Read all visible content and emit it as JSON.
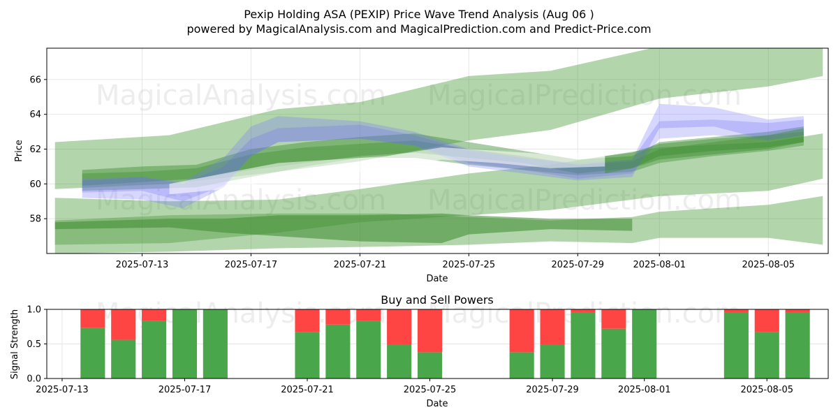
{
  "chart_data": [
    {
      "type": "area",
      "title": "Pexip Holding ASA (PEXIP) Price Wave Trend Analysis (Aug 06 )",
      "subtitle": "powered by MagicalAnalysis.com and MagicalPrediction.com and Predict-Price.com",
      "xlabel": "Date",
      "ylabel": "Price",
      "ylim": [
        56.0,
        67.8
      ],
      "yticks": [
        58,
        60,
        62,
        64,
        66
      ],
      "xticks": [
        "2025-07-13",
        "2025-07-17",
        "2025-07-21",
        "2025-07-25",
        "2025-07-29",
        "2025-08-01",
        "2025-08-05"
      ],
      "xtick_days": [
        13,
        17,
        21,
        25,
        29,
        32,
        36
      ],
      "xlim_days": [
        9.5,
        38.2
      ],
      "watermarks": [
        "MagicalAnalysis.com",
        "MagicalPrediction.com"
      ],
      "bands": [
        {
          "name": "upper-wide",
          "color": "#4a9c3a",
          "opacity": 0.42,
          "points": [
            [
              9.8,
              62.4,
              59.7
            ],
            [
              14,
              62.8,
              60.0
            ],
            [
              18,
              64.3,
              60.7
            ],
            [
              21,
              64.7,
              61.3
            ],
            [
              25,
              66.2,
              62.5
            ],
            [
              28,
              66.5,
              63.1
            ],
            [
              32,
              67.9,
              64.9
            ],
            [
              36,
              67.8,
              65.6
            ],
            [
              38,
              68.3,
              66.2
            ]
          ]
        },
        {
          "name": "lower-wide",
          "color": "#4a9c3a",
          "opacity": 0.42,
          "points": [
            [
              9.8,
              59.2,
              56.5
            ],
            [
              14,
              59.0,
              56.6
            ],
            [
              18,
              59.1,
              57.2
            ],
            [
              21,
              59.7,
              57.8
            ],
            [
              25,
              60.6,
              58.2
            ],
            [
              28,
              61.1,
              58.5
            ],
            [
              32,
              62.1,
              59.3
            ],
            [
              36,
              62.4,
              59.6
            ],
            [
              38,
              62.9,
              60.3
            ]
          ]
        },
        {
          "name": "bottom-band",
          "color": "#4a9c3a",
          "opacity": 0.42,
          "points": [
            [
              9.8,
              57.9,
              56.0
            ],
            [
              14,
              58.2,
              56.1
            ],
            [
              18,
              58.3,
              56.3
            ],
            [
              22,
              58.3,
              56.4
            ],
            [
              25,
              58.1,
              56.5
            ],
            [
              28,
              57.9,
              56.7
            ],
            [
              31,
              58.1,
              56.6
            ],
            [
              32,
              58.4,
              56.9
            ],
            [
              36,
              58.8,
              56.9
            ],
            [
              38,
              59.3,
              56.5
            ]
          ]
        },
        {
          "name": "dark-lower",
          "color": "#3a8a2e",
          "opacity": 0.55,
          "points": [
            [
              9.8,
              57.8,
              57.4
            ],
            [
              14,
              58.0,
              57.5
            ],
            [
              16,
              58.0,
              57.2
            ],
            [
              18,
              58.2,
              57.0
            ],
            [
              21,
              58.2,
              56.7
            ],
            [
              24,
              58.3,
              56.6
            ],
            [
              25,
              58.2,
              57.1
            ],
            [
              28,
              58.0,
              57.4
            ],
            [
              31,
              58.0,
              57.3
            ]
          ]
        },
        {
          "name": "green-mid-1",
          "color": "#3f8f33",
          "opacity": 0.45,
          "points": [
            [
              10.8,
              60.8,
              59.9
            ],
            [
              13,
              61.0,
              60.1
            ],
            [
              15,
              61.1,
              60.3
            ],
            [
              17,
              62.0,
              60.8
            ],
            [
              19,
              62.4,
              61.2
            ],
            [
              21,
              62.7,
              61.6
            ],
            [
              23,
              62.9,
              61.8
            ],
            [
              25,
              62.4,
              61.5
            ],
            [
              27,
              61.9,
              61.2
            ],
            [
              29,
              61.4,
              60.6
            ],
            [
              31,
              61.6,
              60.9
            ],
            [
              32,
              62.4,
              61.4
            ],
            [
              34,
              62.7,
              61.7
            ],
            [
              36,
              63.0,
              62.0
            ],
            [
              37.3,
              63.3,
              62.4
            ]
          ]
        },
        {
          "name": "green-mid-2",
          "color": "#3f8f33",
          "opacity": 0.4,
          "points": [
            [
              10.8,
              60.6,
              59.6
            ],
            [
              13,
              60.7,
              59.7
            ],
            [
              15,
              60.9,
              59.8
            ],
            [
              17,
              61.7,
              60.4
            ],
            [
              19,
              62.1,
              61.0
            ],
            [
              21,
              62.3,
              61.5
            ],
            [
              23,
              62.5,
              61.5
            ],
            [
              25,
              62.0,
              61.1
            ],
            [
              27,
              61.6,
              60.8
            ],
            [
              29,
              61.1,
              60.5
            ],
            [
              31,
              61.3,
              60.7
            ],
            [
              32,
              62.0,
              61.2
            ],
            [
              34,
              62.4,
              61.6
            ],
            [
              36,
              62.8,
              61.9
            ],
            [
              37.3,
              63.0,
              62.2
            ]
          ]
        },
        {
          "name": "blue-1",
          "color": "#7777ff",
          "opacity": 0.3,
          "points": [
            [
              10.8,
              60.3,
              59.2
            ],
            [
              13,
              60.4,
              59.1
            ],
            [
              14.5,
              60.1,
              58.6
            ],
            [
              16,
              61.5,
              59.8
            ],
            [
              17,
              63.3,
              61.6
            ],
            [
              18,
              63.9,
              62.4
            ],
            [
              21,
              63.6,
              62.6
            ],
            [
              23,
              63.0,
              62.2
            ],
            [
              25,
              62.0,
              61.0
            ],
            [
              27,
              61.5,
              60.6
            ],
            [
              29,
              61.2,
              60.2
            ],
            [
              31,
              61.4,
              60.4
            ],
            [
              32,
              64.6,
              63.2
            ],
            [
              34,
              64.4,
              63.3
            ],
            [
              36,
              63.7,
              62.5
            ],
            [
              37.3,
              63.9,
              62.8
            ]
          ]
        },
        {
          "name": "blue-2",
          "color": "#6666ee",
          "opacity": 0.25,
          "points": [
            [
              10.8,
              60.2,
              59.5
            ],
            [
              13,
              60.4,
              59.6
            ],
            [
              14.5,
              60.0,
              59.0
            ],
            [
              16,
              61.0,
              59.9
            ],
            [
              17,
              62.6,
              61.6
            ],
            [
              18,
              63.2,
              62.4
            ],
            [
              21,
              63.4,
              62.6
            ],
            [
              23,
              62.8,
              62.2
            ],
            [
              25,
              61.9,
              61.2
            ],
            [
              27,
              61.5,
              60.8
            ],
            [
              29,
              61.1,
              60.3
            ],
            [
              31,
              61.4,
              60.6
            ],
            [
              32,
              63.6,
              62.6
            ],
            [
              34,
              63.7,
              62.8
            ],
            [
              36,
              63.5,
              62.5
            ],
            [
              37.3,
              63.7,
              62.8
            ]
          ]
        },
        {
          "name": "white-streak",
          "color": "#ffffff",
          "opacity": 0.55,
          "points": [
            [
              14,
              60.0,
              59.4
            ],
            [
              16,
              60.6,
              59.7
            ],
            [
              18,
              61.2,
              60.2
            ],
            [
              20,
              61.4,
              60.5
            ],
            [
              22,
              61.6,
              60.9
            ],
            [
              24,
              62.1,
              61.4
            ],
            [
              26,
              61.9,
              61.2
            ],
            [
              28,
              61.7,
              60.9
            ],
            [
              30,
              61.9,
              61.0
            ]
          ]
        },
        {
          "name": "green-right",
          "color": "#3f8f33",
          "opacity": 0.45,
          "points": [
            [
              30,
              61.6,
              60.6
            ],
            [
              31,
              61.8,
              60.9
            ],
            [
              32,
              62.3,
              61.6
            ],
            [
              34,
              62.6,
              61.9
            ],
            [
              35,
              62.7,
              62.0
            ],
            [
              36,
              62.8,
              62.1
            ],
            [
              37.3,
              63.2,
              62.4
            ]
          ]
        }
      ]
    },
    {
      "type": "bar",
      "title": "Buy and Sell Powers",
      "xlabel": "Date",
      "ylabel": "Signal Strength",
      "ylim": [
        0.0,
        1.0
      ],
      "yticks": [
        "0.0",
        "0.5",
        "1.0"
      ],
      "xticks": [
        "2025-07-13",
        "2025-07-17",
        "2025-07-21",
        "2025-07-25",
        "2025-07-29",
        "2025-08-01",
        "2025-08-05"
      ],
      "xtick_days": [
        13,
        17,
        21,
        25,
        29,
        32,
        36
      ],
      "xlim_days": [
        12.5,
        38.0
      ],
      "buy_color": "#4aa64a",
      "sell_color": "#ff4444",
      "series": [
        {
          "name": "buy",
          "values": [
            0.73,
            0.56,
            0.83,
            1.0,
            1.0,
            0.67,
            0.78,
            0.83,
            0.49,
            0.38,
            0.38,
            0.49,
            0.95,
            0.72,
            1.0,
            0.95,
            0.67,
            0.95
          ]
        },
        {
          "name": "sell",
          "values": [
            0.27,
            0.44,
            0.17,
            0.0,
            0.0,
            0.33,
            0.22,
            0.17,
            0.51,
            0.62,
            0.62,
            0.51,
            0.05,
            0.28,
            0.0,
            0.05,
            0.33,
            0.05
          ]
        }
      ],
      "bar_days": [
        14,
        15,
        16,
        17,
        18,
        21,
        22,
        23,
        24,
        25,
        28,
        29,
        30,
        31,
        32,
        35,
        36,
        37
      ]
    }
  ]
}
